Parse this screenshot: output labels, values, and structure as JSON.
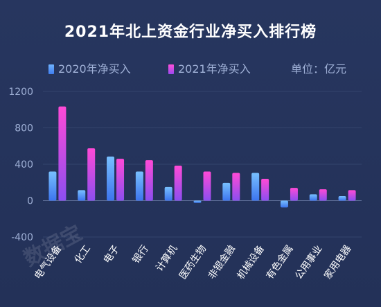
{
  "chart_data": {
    "type": "bar",
    "title": "2021年北上资金行业净买入排行榜",
    "unit_note": "单位：亿元",
    "categories": [
      "电气设备",
      "化工",
      "电子",
      "银行",
      "计算机",
      "医药生物",
      "非银金融",
      "机械设备",
      "有色金属",
      "公用事业",
      "家用电器"
    ],
    "series": [
      {
        "name": "2020年净买入",
        "color": "#5aa0ff",
        "values": [
          320,
          115,
          485,
          320,
          150,
          -25,
          195,
          305,
          -75,
          70,
          50
        ]
      },
      {
        "name": "2021年净买入",
        "color": "#e040e8",
        "values": [
          1035,
          575,
          460,
          445,
          385,
          320,
          305,
          240,
          140,
          125,
          115
        ]
      }
    ],
    "yticks": [
      -400,
      0,
      400,
      800,
      1200
    ],
    "ylim": [
      -400,
      1200
    ],
    "grid": true
  },
  "watermark": "数据宝"
}
